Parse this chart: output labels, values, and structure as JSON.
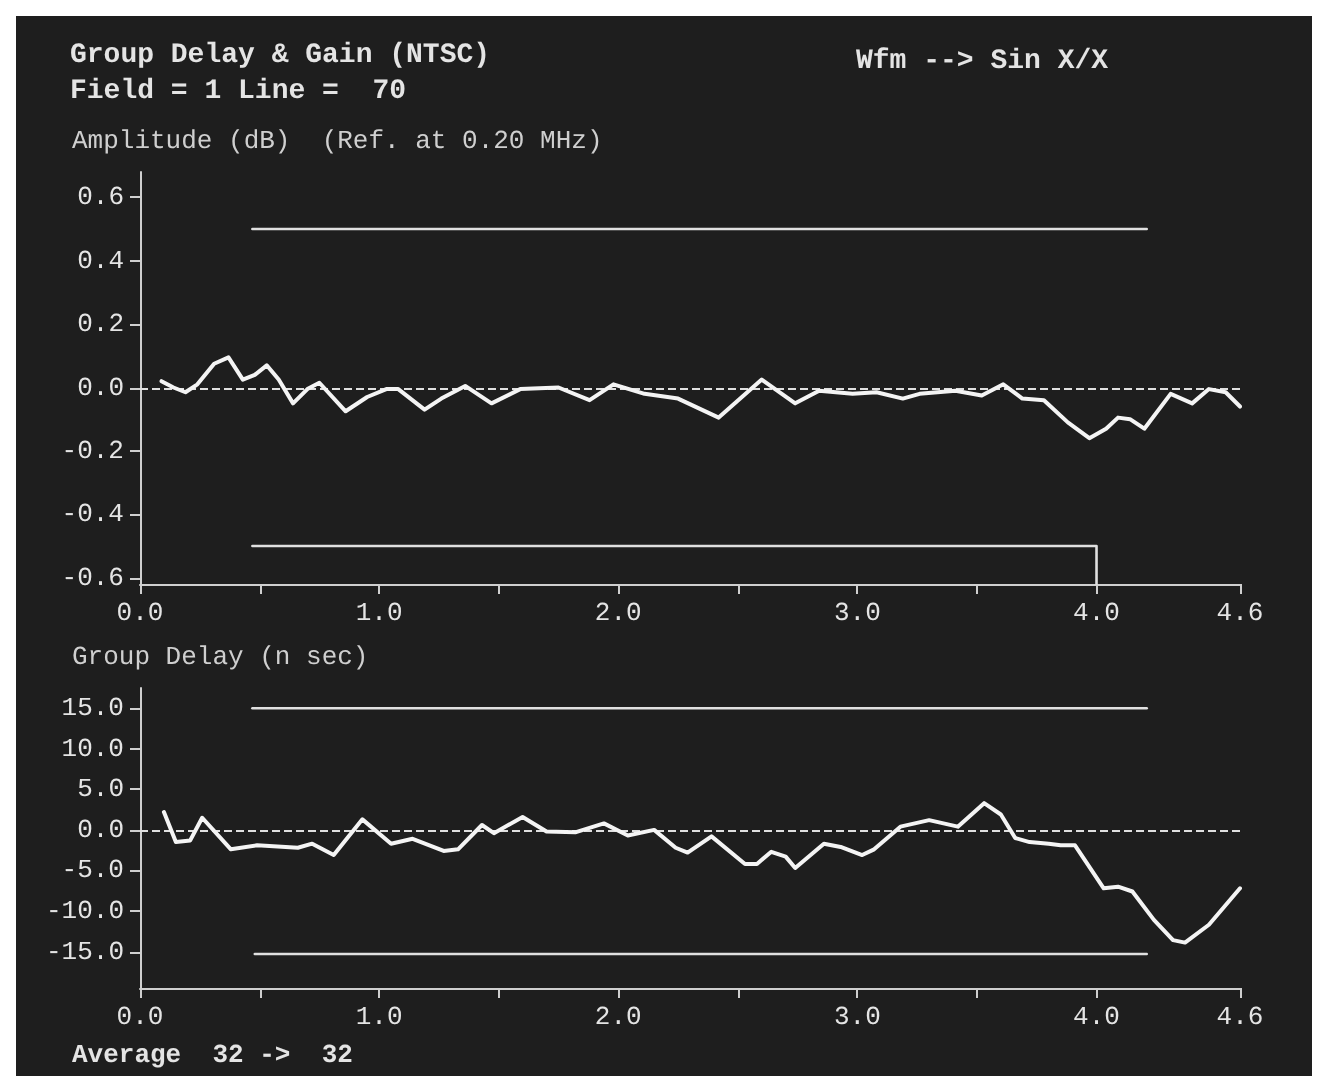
{
  "chart_data": [
    {
      "type": "line",
      "title": "Group Delay & Gain (NTSC)",
      "subtitle": "Field = 1 Line =  70",
      "ylabel": "Amplitude (dB)  (Ref. at 0.20 MHz)",
      "annotations": [
        "Wfm --> Sin X/X"
      ],
      "marker": "none",
      "xlim": [
        0,
        4.6
      ],
      "ylim": [
        -0.62,
        0.68
      ],
      "xticks": [
        {
          "value": 0,
          "label": "0.0"
        },
        {
          "value": 0.5,
          "label": null
        },
        {
          "value": 1,
          "label": "1.0"
        },
        {
          "value": 1.5,
          "label": null
        },
        {
          "value": 2,
          "label": "2.0"
        },
        {
          "value": 2.5,
          "label": null
        },
        {
          "value": 3,
          "label": "3.0"
        },
        {
          "value": 3.5,
          "label": null
        },
        {
          "value": 4,
          "label": "4.0"
        },
        {
          "value": 4.6,
          "label": "4.6"
        }
      ],
      "yticks": [
        {
          "value": -0.6,
          "label": "-0.6"
        },
        {
          "value": -0.4,
          "label": "-0.4"
        },
        {
          "value": -0.2,
          "label": "-0.2"
        },
        {
          "value": 0,
          "label": "0.0"
        },
        {
          "value": 0.2,
          "label": "0.2"
        },
        {
          "value": 0.4,
          "label": "0.4"
        },
        {
          "value": 0.6,
          "label": "0.6"
        }
      ],
      "ref_lines": [
        {
          "axis": "y",
          "value": 0,
          "line_style": "dashed",
          "color": "#e0e0e0"
        }
      ],
      "series": [
        {
          "color": "#f4f4f4",
          "x": [
            0.09,
            0.14,
            0.19,
            0.24,
            0.31,
            0.37,
            0.43,
            0.48,
            0.53,
            0.58,
            0.64,
            0.7,
            0.75,
            0.86,
            0.95,
            1.03,
            1.08,
            1.19,
            1.26,
            1.36,
            1.47,
            1.59,
            1.75,
            1.88,
            1.98,
            2.11,
            2.25,
            2.42,
            2.51,
            2.6,
            2.74,
            2.84,
            2.98,
            3.08,
            3.19,
            3.26,
            3.41,
            3.52,
            3.61,
            3.69,
            3.78,
            3.88,
            3.97,
            4.04,
            4.09,
            4.14,
            4.2,
            4.31,
            4.4,
            4.47,
            4.54,
            4.6
          ],
          "values": [
            0.02,
            0,
            -0.015,
            0.01,
            0.075,
            0.095,
            0.025,
            0.04,
            0.07,
            0.025,
            -0.05,
            -0.005,
            0.015,
            -0.075,
            -0.03,
            -0.005,
            -0.005,
            -0.07,
            -0.035,
            0.005,
            -0.05,
            -0.005,
            0,
            -0.04,
            0.01,
            -0.02,
            -0.035,
            -0.095,
            -0.035,
            0.025,
            -0.05,
            -0.01,
            -0.02,
            -0.015,
            -0.035,
            -0.02,
            -0.01,
            -0.025,
            0.01,
            -0.035,
            -0.04,
            -0.11,
            -0.16,
            -0.13,
            -0.095,
            -0.1,
            -0.13,
            -0.02,
            -0.05,
            -0.005,
            -0.015,
            -0.06
          ]
        },
        {
          "color": "#e0e0e0",
          "x": [
            0.47,
            4.21
          ],
          "values": [
            0.5,
            0.5
          ]
        },
        {
          "color": "#e0e0e0",
          "x": [
            0.47,
            4.0,
            4.0
          ],
          "values": [
            -0.5,
            -0.5,
            -0.62
          ]
        }
      ]
    },
    {
      "type": "line",
      "ylabel": "Group Delay (n sec)",
      "annotations": [
        "Average  32 ->  32"
      ],
      "marker": "none",
      "xlim": [
        0,
        4.6
      ],
      "ylim": [
        -19.5,
        17.5
      ],
      "xticks": [
        {
          "value": 0,
          "label": "0.0"
        },
        {
          "value": 0.5,
          "label": null
        },
        {
          "value": 1,
          "label": "1.0"
        },
        {
          "value": 1.5,
          "label": null
        },
        {
          "value": 2,
          "label": "2.0"
        },
        {
          "value": 2.5,
          "label": null
        },
        {
          "value": 3,
          "label": "3.0"
        },
        {
          "value": 3.5,
          "label": null
        },
        {
          "value": 4,
          "label": "4.0"
        },
        {
          "value": 4.6,
          "label": "4.6"
        }
      ],
      "yticks": [
        {
          "value": -15,
          "label": "-15.0"
        },
        {
          "value": -10,
          "label": "-10.0"
        },
        {
          "value": -5,
          "label": "-5.0"
        },
        {
          "value": 0,
          "label": "0.0"
        },
        {
          "value": 5,
          "label": "5.0"
        },
        {
          "value": 10,
          "label": "10.0"
        },
        {
          "value": 15,
          "label": "15.0"
        }
      ],
      "ref_lines": [
        {
          "axis": "y",
          "value": 0,
          "line_style": "dashed",
          "color": "#e0e0e0"
        }
      ],
      "series": [
        {
          "color": "#f4f4f4",
          "x": [
            0.1,
            0.15,
            0.21,
            0.26,
            0.38,
            0.49,
            0.66,
            0.72,
            0.81,
            0.93,
            1.05,
            1.14,
            1.27,
            1.33,
            1.43,
            1.48,
            1.6,
            1.7,
            1.82,
            1.94,
            2.04,
            2.15,
            2.24,
            2.29,
            2.39,
            2.53,
            2.58,
            2.64,
            2.7,
            2.74,
            2.86,
            2.93,
            3.02,
            3.07,
            3.18,
            3.3,
            3.42,
            3.53,
            3.6,
            3.66,
            3.72,
            3.8,
            3.85,
            3.91,
            4.03,
            4.09,
            4.15,
            4.24,
            4.32,
            4.37,
            4.47,
            4.6
          ],
          "values": [
            2.2,
            -1.5,
            -1.3,
            1.5,
            -2.4,
            -1.9,
            -2.2,
            -1.7,
            -3.1,
            1.3,
            -1.7,
            -1.1,
            -2.6,
            -2.4,
            0.6,
            -0.4,
            1.6,
            -0.2,
            -0.3,
            0.8,
            -0.7,
            0,
            -2.2,
            -2.8,
            -0.8,
            -4.2,
            -4.2,
            -2.7,
            -3.3,
            -4.7,
            -1.7,
            -2.1,
            -3.1,
            -2.4,
            0.4,
            1.2,
            0.4,
            3.3,
            1.9,
            -1,
            -1.5,
            -1.7,
            -1.9,
            -1.9,
            -7.2,
            -7,
            -7.6,
            -11.1,
            -13.6,
            -13.9,
            -11.7,
            -7.2
          ]
        },
        {
          "color": "#e0e0e0",
          "x": [
            0.47,
            4.21
          ],
          "values": [
            15,
            15
          ]
        },
        {
          "color": "#e0e0e0",
          "x": [
            0.48,
            4.21
          ],
          "values": [
            -15.3,
            -15.3
          ]
        }
      ]
    }
  ]
}
